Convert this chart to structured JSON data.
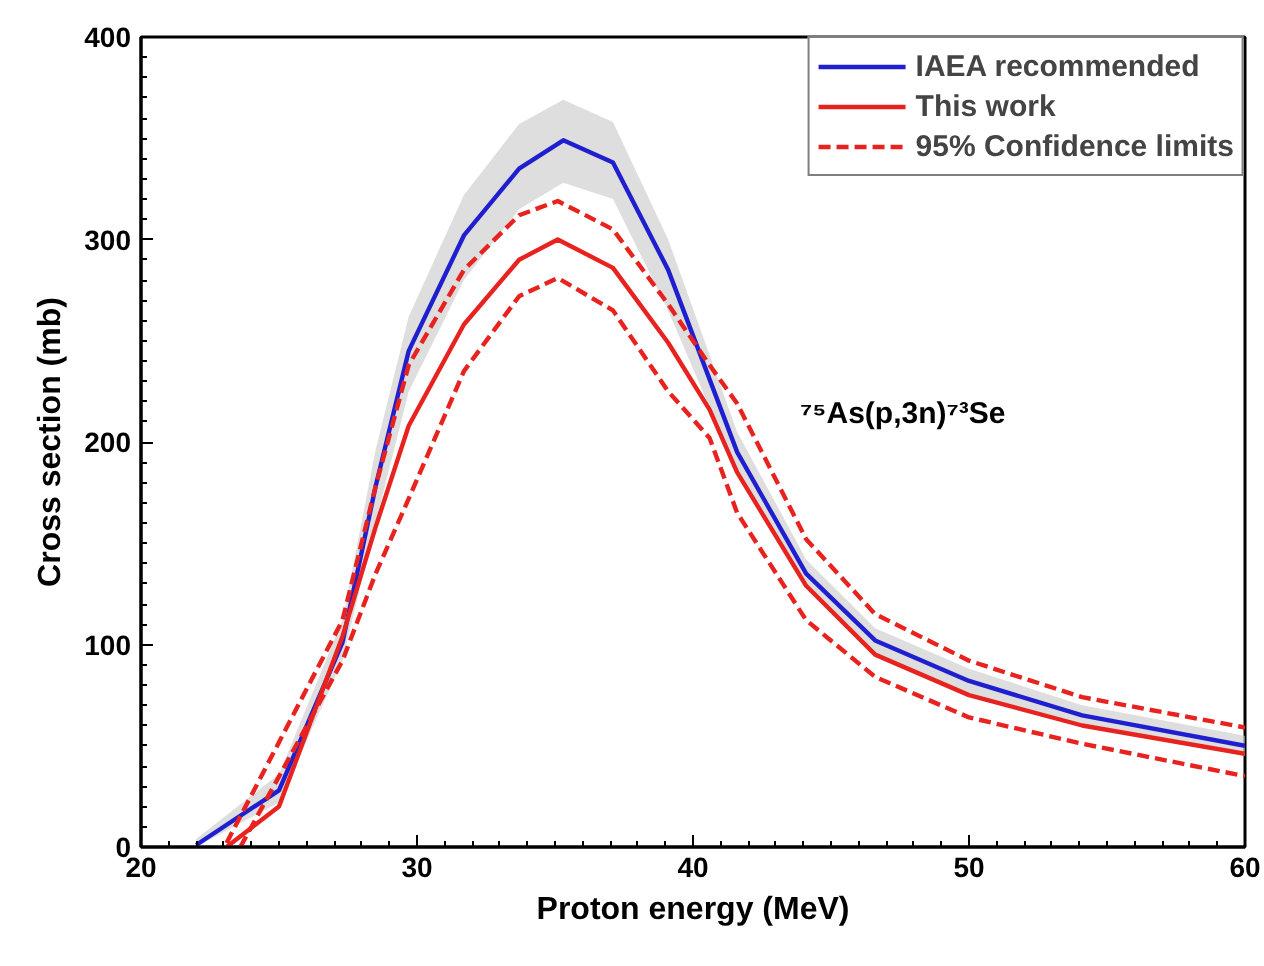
{
  "chart_data": {
    "type": "line",
    "xlabel": "Proton energy (MeV)",
    "ylabel": "Cross section (mb)",
    "xlim": [
      20,
      60
    ],
    "xticks": [
      20,
      30,
      40,
      50,
      60
    ],
    "ylim": [
      0,
      400
    ],
    "yticks": [
      0,
      100,
      200,
      300,
      400
    ],
    "grid": false,
    "legend": "top right",
    "line_style": "solid",
    "marker": "none",
    "annotations": [
      "⁷⁵As(p,3n)⁷³Se"
    ],
    "series": [
      {
        "name": "IAEA recommended",
        "color": "#1f1fd0",
        "x": [
          22,
          25,
          27.3,
          28.5,
          29.7,
          31.7,
          33.7,
          35.3,
          37.1,
          39.1,
          41.6,
          44.1,
          46.6,
          50,
          54.1,
          60
        ],
        "values": [
          1,
          28,
          101,
          178,
          245,
          302,
          335,
          349,
          338,
          285,
          195,
          135,
          102,
          82,
          65,
          50
        ],
        "lower": [
          0,
          22,
          92,
          160,
          225,
          280,
          315,
          328,
          320,
          265,
          185,
          128,
          96,
          76,
          60,
          45
        ],
        "upper": [
          4,
          36,
          112,
          196,
          262,
          322,
          357,
          369,
          358,
          300,
          205,
          142,
          108,
          88,
          70,
          55
        ]
      },
      {
        "name": "This work",
        "color": "#e8231f",
        "x": [
          23.1,
          25,
          27.3,
          28.5,
          29.7,
          31.7,
          33.7,
          35.1,
          37.1,
          39.1,
          40.6,
          41.6,
          44.1,
          46.6,
          50,
          54.1,
          60
        ],
        "values": [
          0,
          20,
          104,
          158,
          208,
          258,
          290,
          300,
          286,
          249,
          216,
          185,
          129,
          95,
          75,
          60,
          46
        ]
      },
      {
        "name": "95% Confidence limits",
        "color": "#e8231f",
        "line_style": "dashed",
        "x": [
          23.1,
          27.3,
          28.5,
          29.7,
          31.7,
          33.7,
          35.1,
          37.1,
          39.1,
          40.6,
          41.6,
          44.1,
          46.6,
          50,
          54.1,
          60
        ],
        "values": [
          2,
          112,
          178,
          238,
          285,
          312,
          319,
          305,
          268,
          238,
          219,
          152,
          115,
          92,
          74,
          59
        ]
      },
      {
        "color": "#e8231f",
        "line_style": "dashed",
        "x": [
          23.6,
          27.3,
          28.5,
          29.7,
          31.7,
          33.7,
          35.1,
          37.1,
          39.1,
          40.6,
          41.6,
          44.1,
          46.6,
          50,
          54.1,
          60
        ],
        "values": [
          0,
          92,
          135,
          172,
          235,
          272,
          281,
          265,
          225,
          202,
          165,
          112,
          84,
          64,
          51,
          35
        ]
      }
    ]
  }
}
